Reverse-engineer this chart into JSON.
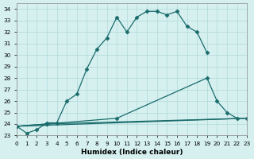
{
  "xlabel": "Humidex (Indice chaleur)",
  "background_color": "#d6f0f0",
  "line_color": "#1a6b6b",
  "grid_color": "#b0d8d8",
  "xlim": [
    0,
    23
  ],
  "ylim": [
    23,
    34.5
  ],
  "yticks": [
    23,
    24,
    25,
    26,
    27,
    28,
    29,
    30,
    31,
    32,
    33,
    34
  ],
  "xticks": [
    0,
    1,
    2,
    3,
    4,
    5,
    6,
    7,
    8,
    9,
    10,
    11,
    12,
    13,
    14,
    15,
    16,
    17,
    18,
    19,
    20,
    21,
    22,
    23
  ],
  "series1_x": [
    0,
    1,
    2,
    3,
    4,
    5,
    6,
    7,
    8,
    9,
    10,
    11,
    12,
    13,
    14,
    15,
    16,
    17,
    18,
    19
  ],
  "series1_y": [
    23.8,
    23.2,
    23.5,
    24.1,
    24.1,
    26.0,
    26.6,
    28.8,
    30.5,
    31.5,
    33.3,
    32.0,
    33.3,
    33.8,
    33.8,
    33.5,
    33.8,
    32.5,
    32.0,
    30.2
  ],
  "series2_x": [
    0,
    3,
    10,
    19,
    20,
    21,
    22
  ],
  "series2_y": [
    23.8,
    24.0,
    24.5,
    28.0,
    26.0,
    25.0,
    24.5
  ],
  "series3_x": [
    0,
    3,
    23
  ],
  "series3_y": [
    23.8,
    24.0,
    24.5
  ],
  "series4_x": [
    0,
    23
  ],
  "series4_y": [
    23.8,
    24.5
  ]
}
